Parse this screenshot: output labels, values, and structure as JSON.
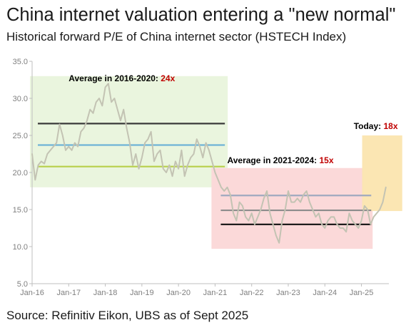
{
  "title": "China internet valuation entering a \"new normal\"",
  "subtitle": "Historical forward P/E of China internet sector (HSTECH Index)",
  "source": "Source: Refinitiv Eikon, UBS as of Sept 2025",
  "colors": {
    "series": "#c3c3b3",
    "period1_box": "#eaf5de",
    "period2_box": "#fbd9d9",
    "today_box": "#fbe6b3",
    "line_dark": "#3a3a3a",
    "line_blue": "#6fb3d6",
    "line_green": "#b7cf4a",
    "line_slate": "#9fa9bf",
    "line_gray": "#8c8c8c",
    "line_black": "#111111",
    "axis": "#bfbfbf"
  },
  "chart_data": {
    "type": "line",
    "title": "China internet valuation entering a \"new normal\"",
    "subtitle": "Historical forward P/E of China internet sector (HSTECH Index)",
    "xlabel": "",
    "ylabel": "",
    "ylim": [
      5,
      35
    ],
    "yticks": [
      "5.0",
      "10.0",
      "15.0",
      "20.0",
      "25.0",
      "30.0",
      "35.0"
    ],
    "xlim": [
      "2016-01",
      "2025-10"
    ],
    "xticks": [
      "Jan-16",
      "Jan-17",
      "Jan-18",
      "Jan-19",
      "Jan-20",
      "Jan-21",
      "Jan-22",
      "Jan-23",
      "Jan-24",
      "Jan-25"
    ],
    "grid": false,
    "legend": "none",
    "series": [
      {
        "x": [
          "2016-01",
          "2016-02",
          "2016-03",
          "2016-04",
          "2016-05",
          "2016-06",
          "2016-07",
          "2016-08",
          "2016-09",
          "2016-10",
          "2016-11",
          "2016-12",
          "2017-01",
          "2017-02",
          "2017-03",
          "2017-04",
          "2017-05",
          "2017-06",
          "2017-07",
          "2017-08",
          "2017-09",
          "2017-10",
          "2017-11",
          "2017-12",
          "2018-01",
          "2018-02",
          "2018-03",
          "2018-04",
          "2018-05",
          "2018-06",
          "2018-07",
          "2018-08",
          "2018-09",
          "2018-10",
          "2018-11",
          "2018-12",
          "2019-01",
          "2019-02",
          "2019-03",
          "2019-04",
          "2019-05",
          "2019-06",
          "2019-07",
          "2019-08",
          "2019-09",
          "2019-10",
          "2019-11",
          "2019-12",
          "2020-01",
          "2020-02",
          "2020-03",
          "2020-04",
          "2020-05",
          "2020-06",
          "2020-07",
          "2020-08",
          "2020-09",
          "2020-10",
          "2020-11",
          "2020-12",
          "2021-01",
          "2021-02",
          "2021-03",
          "2021-04",
          "2021-05",
          "2021-06",
          "2021-07",
          "2021-08",
          "2021-09",
          "2021-10",
          "2021-11",
          "2021-12",
          "2022-01",
          "2022-02",
          "2022-03",
          "2022-04",
          "2022-05",
          "2022-06",
          "2022-07",
          "2022-08",
          "2022-09",
          "2022-10",
          "2022-11",
          "2022-12",
          "2023-01",
          "2023-02",
          "2023-03",
          "2023-04",
          "2023-05",
          "2023-06",
          "2023-07",
          "2023-08",
          "2023-09",
          "2023-10",
          "2023-11",
          "2023-12",
          "2024-01",
          "2024-02",
          "2024-03",
          "2024-04",
          "2024-05",
          "2024-06",
          "2024-07",
          "2024-08",
          "2024-09",
          "2024-10",
          "2024-11",
          "2024-12",
          "2025-01",
          "2025-02",
          "2025-03",
          "2025-04",
          "2025-05",
          "2025-06",
          "2025-07",
          "2025-08",
          "2025-09"
        ],
        "values": [
          22.5,
          19.0,
          21.0,
          21.5,
          21.2,
          22.5,
          23.0,
          23.5,
          24.0,
          26.5,
          25.0,
          23.0,
          23.5,
          23.0,
          24.0,
          23.5,
          25.5,
          26.0,
          27.0,
          28.5,
          28.0,
          29.5,
          30.0,
          29.0,
          31.5,
          32.0,
          29.5,
          30.0,
          28.5,
          27.0,
          28.5,
          26.0,
          24.0,
          21.0,
          22.5,
          20.5,
          22.0,
          24.0,
          24.5,
          25.5,
          21.5,
          22.5,
          23.0,
          20.5,
          20.0,
          21.0,
          19.5,
          21.5,
          20.5,
          23.0,
          19.5,
          21.0,
          22.0,
          22.5,
          24.5,
          23.5,
          22.0,
          24.0,
          23.0,
          21.5,
          20.0,
          19.0,
          18.0,
          17.5,
          18.0,
          17.0,
          14.5,
          13.5,
          16.0,
          15.5,
          14.0,
          13.5,
          14.5,
          13.0,
          14.0,
          15.0,
          16.5,
          17.5,
          14.5,
          13.0,
          11.5,
          10.5,
          13.5,
          15.0,
          17.5,
          16.0,
          16.0,
          16.5,
          16.0,
          17.0,
          17.5,
          16.0,
          15.0,
          14.0,
          14.5,
          13.0,
          12.5,
          13.5,
          14.0,
          14.0,
          13.0,
          12.5,
          12.5,
          12.0,
          14.5,
          13.5,
          13.0,
          12.5,
          13.5,
          15.5,
          15.0,
          13.0,
          14.0,
          14.5,
          15.0,
          16.0,
          18.0
        ]
      }
    ],
    "reference_bands": [
      {
        "label": "Average in 2016-2020: ",
        "value_label": "24x",
        "from": "2016-01",
        "to": "2020-12",
        "ylim": [
          18,
          33
        ]
      },
      {
        "label": "Average in 2021-2024: ",
        "value_label": "15x",
        "from": "2021-01",
        "to": "2024-12",
        "ylim": [
          9.7,
          20.6
        ]
      },
      {
        "label": "Today: ",
        "value_label": "18x",
        "from": "2025-01",
        "to": "2025-09",
        "ylim": [
          14.8,
          25
        ]
      }
    ],
    "reference_lines": [
      {
        "band": 0,
        "y": 26.6,
        "color": "line_dark"
      },
      {
        "band": 0,
        "y": 23.7,
        "color": "line_blue"
      },
      {
        "band": 0,
        "y": 20.8,
        "color": "line_green"
      },
      {
        "band": 1,
        "y": 16.9,
        "color": "line_slate"
      },
      {
        "band": 1,
        "y": 14.9,
        "color": "line_gray"
      },
      {
        "band": 1,
        "y": 13.0,
        "color": "line_black"
      }
    ]
  }
}
